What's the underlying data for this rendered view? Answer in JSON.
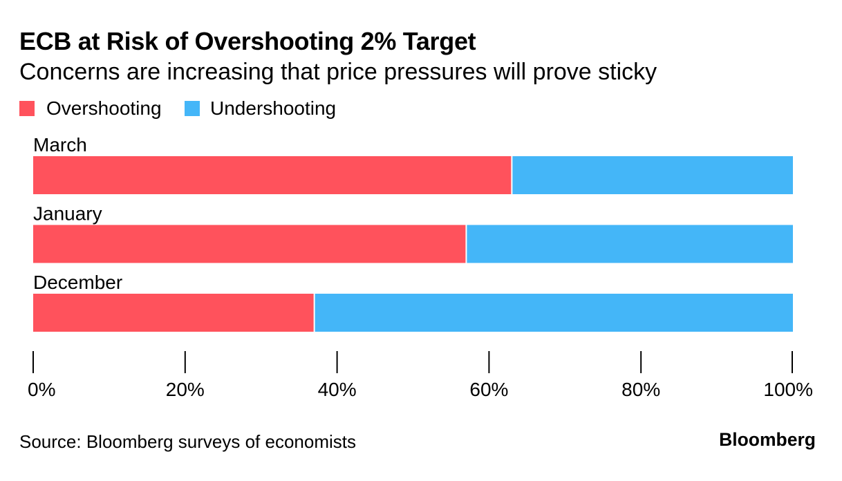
{
  "chart_data": {
    "type": "bar",
    "horizontal": true,
    "stacked": true,
    "title": "ECB at Risk of Overshooting 2% Target",
    "subtitle": "Concerns are increasing that price pressures will prove sticky",
    "categories": [
      "March",
      "January",
      "December"
    ],
    "series": [
      {
        "name": "Overshooting",
        "values": [
          63,
          57,
          37
        ],
        "color": "#ff525c"
      },
      {
        "name": "Undershooting",
        "values": [
          37,
          43,
          63
        ],
        "color": "#44b6f8"
      }
    ],
    "xlim": [
      0,
      100
    ],
    "xticks": [
      0,
      20,
      40,
      60,
      80,
      100
    ],
    "xtick_labels": [
      "0%",
      "20%",
      "40%",
      "60%",
      "80%",
      "100%"
    ],
    "xlabel": "",
    "ylabel": "",
    "grid": false,
    "legend": "top-left"
  },
  "footer": {
    "source": "Source: Bloomberg surveys of economists",
    "brand": "Bloomberg"
  }
}
